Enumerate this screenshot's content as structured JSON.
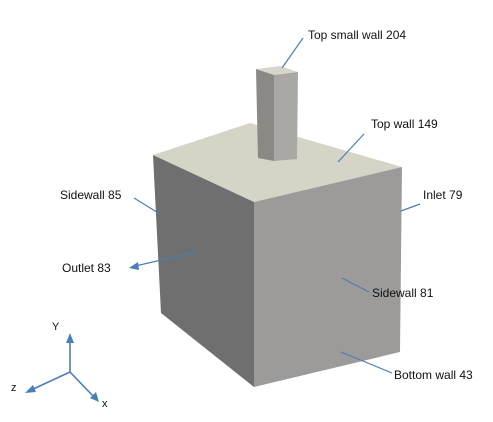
{
  "labels": {
    "top_small_wall": "Top small wall 204",
    "top_wall": "Top wall 149",
    "sidewall_85": "Sidewall 85",
    "inlet": "Inlet 79",
    "outlet": "Outlet 83",
    "sidewall_81": "Sidewall 81",
    "bottom_wall": "Bottom wall 43"
  },
  "axes": {
    "y": "Y",
    "z": "z",
    "x": "x"
  },
  "colors": {
    "leader_line": "#4a7fb5",
    "top_face": "#d6d4c7",
    "front_face": "#9c9b99",
    "left_face": "#6f6f6f",
    "chimney_front": "#8a8986",
    "chimney_side": "#a9a8a4",
    "chimney_top": "#d8d6cb"
  }
}
